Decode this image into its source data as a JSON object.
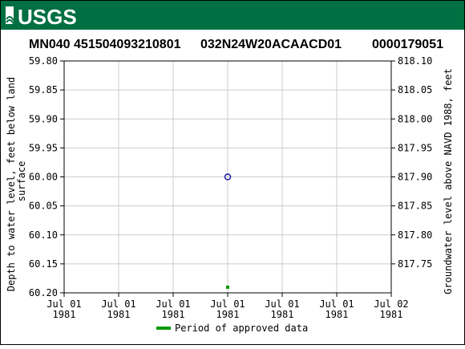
{
  "brand": {
    "logo_text": "USGS",
    "bar_color": "#006f41"
  },
  "header": {
    "site_name": "MN040 451504093210801",
    "location_code": "032N24W20ACAACD01",
    "site_number": "0000179051"
  },
  "chart_data": {
    "type": "scatter",
    "title": "",
    "ylabel_left": "Depth to water level, feet below land surface",
    "ylabel_right": "Groundwater level above NAVD 1988, feet",
    "y_left": {
      "min": 59.8,
      "max": 60.2,
      "inverted": true,
      "ticks": [
        "59.80",
        "59.85",
        "59.90",
        "59.95",
        "60.00",
        "60.05",
        "60.10",
        "60.15",
        "60.20"
      ]
    },
    "y_right": {
      "min": 817.7,
      "max": 818.1,
      "ticks": [
        "818.10",
        "818.05",
        "818.00",
        "817.95",
        "817.90",
        "817.85",
        "817.80",
        "817.75"
      ]
    },
    "x_ticks": [
      [
        "Jul 01",
        "1981"
      ],
      [
        "Jul 01",
        "1981"
      ],
      [
        "Jul 01",
        "1981"
      ],
      [
        "Jul 01",
        "1981"
      ],
      [
        "Jul 01",
        "1981"
      ],
      [
        "Jul 01",
        "1981"
      ],
      [
        "Jul 02",
        "1981"
      ]
    ],
    "points": [
      {
        "x": "1981-07-01 12:00",
        "depth": 60.0
      }
    ],
    "approved_period": [
      {
        "x": "1981-07-01 12:00"
      }
    ],
    "grid": true,
    "point_color": "#1a1aa6",
    "approved_color": "#0a9a0a",
    "legend": {
      "position": "bottom",
      "items": [
        {
          "label": "Period of approved data",
          "color": "#0a9a0a"
        }
      ]
    }
  }
}
